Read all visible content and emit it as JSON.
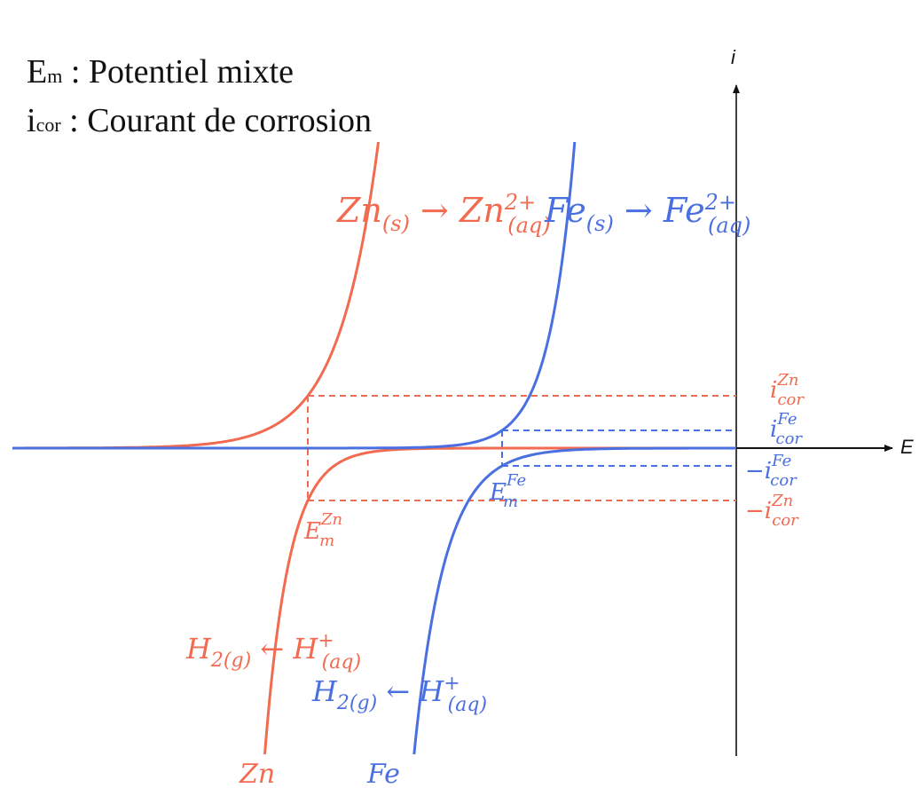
{
  "legend": {
    "line1": {
      "symbol": "E",
      "subscript": "m",
      "text": " : Potentiel mixte"
    },
    "line2": {
      "symbol": "i",
      "subscript": "cor",
      "text": " : Courant de corrosion"
    }
  },
  "axes": {
    "x_label": "E",
    "y_label": "i"
  },
  "colors": {
    "zn": "#f26a4f",
    "fe": "#4a6fe0",
    "axis": "#111111"
  },
  "curves": {
    "zn_oxidation": {
      "base": "Zn",
      "sub": "(s)",
      "arrow": " → ",
      "base2": "Zn",
      "sup2": "2+",
      "sub2": "(aq)"
    },
    "fe_oxidation": {
      "base": "Fe",
      "sub": "(s)",
      "arrow": " → ",
      "base2": "Fe",
      "sup2": "2+",
      "sub2": "(aq)"
    },
    "zn_reduction": {
      "base": "H",
      "sub": "2(g)",
      "arrow": " ← ",
      "base2": "H",
      "sup2": "+",
      "sub2": "(aq)"
    },
    "fe_reduction": {
      "base": "H",
      "sub": "2(g)",
      "arrow": " ← ",
      "base2": "H",
      "sup2": "+",
      "sub2": "(aq)"
    },
    "zn_label": "Zn",
    "fe_label": "Fe"
  },
  "potentials": {
    "em_zn": {
      "base": "E",
      "sub": "m",
      "sup": "Zn"
    },
    "em_fe": {
      "base": "E",
      "sub": "m",
      "sup": "Fe"
    }
  },
  "currents": {
    "icor_zn": {
      "sign": "",
      "base": "i",
      "sub": "cor",
      "sup": "Zn"
    },
    "icor_fe": {
      "sign": "",
      "base": "i",
      "sub": "cor",
      "sup": "Fe"
    },
    "neg_icor_fe": {
      "sign": "−",
      "base": "i",
      "sub": "cor",
      "sup": "Fe"
    },
    "neg_icor_zn": {
      "sign": "−",
      "base": "i",
      "sub": "cor",
      "sup": "Zn"
    }
  }
}
